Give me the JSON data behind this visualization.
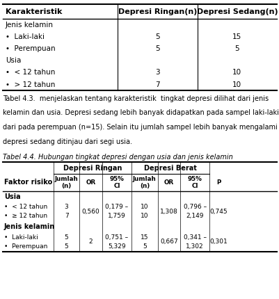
{
  "table1_headers": [
    "Karakteristik",
    "Depresi Ringan(n)",
    "Depresi Sedang(n)"
  ],
  "table1_rows": [
    [
      "Jenis kelamin",
      "",
      ""
    ],
    [
      "•  Laki-laki",
      "5",
      "15"
    ],
    [
      "•  Perempuan",
      "5",
      "5"
    ],
    [
      "Usia",
      "",
      ""
    ],
    [
      "•  < 12 tahun",
      "3",
      "10"
    ],
    [
      "•  > 12 tahun",
      "7",
      "10"
    ]
  ],
  "paragraph_lines": [
    "Tabel 4.3.  menjelaskan tentang karakteristik  tingkat depresi dilihat dari jenis",
    "kelamin dan usia. Depresi sedang lebih banyak didapatkan pada sampel laki-laki",
    "dari pada perempuan (n=15). Selain itu jumlah sampel lebih banyak mengalami",
    "depresi sedang ditinjau dari segi usia."
  ],
  "table2_title": "Tabel 4.4. Hubungan tingkat depresi dengan usia dan jenis kelamin",
  "table2_col1_header": "Faktor risiko",
  "table2_group1": "Depresi Ringan",
  "table2_group2": "Depresi Berat",
  "table2_subheaders": [
    "Jumlah\n(n)",
    "OR",
    "95%\nCI",
    "Jumlah\n(n)",
    "OR",
    "95%\nCI",
    "P"
  ],
  "bg_color": "#ffffff",
  "font_size": 7.5
}
